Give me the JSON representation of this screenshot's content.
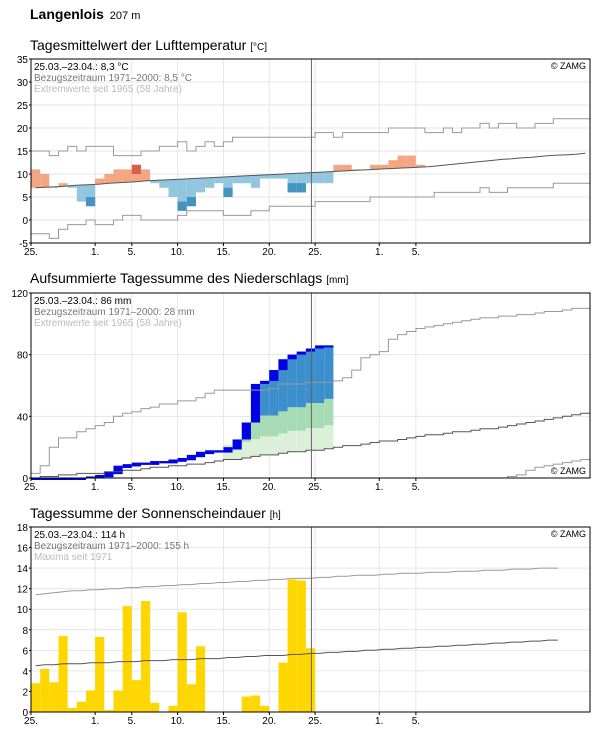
{
  "station": {
    "name": "Langenlois",
    "altitude": "207 m"
  },
  "xticks": [
    "25.",
    "1.",
    "5.",
    "10.",
    "15.",
    "20.",
    "25.",
    "1.",
    "5."
  ],
  "copyright": "© ZAMG",
  "chart_data": [
    {
      "type": "bar",
      "title": "Tagesmittelwert der Lufttemperatur",
      "unit": "[°C]",
      "ylim": [
        -5,
        35
      ],
      "yticks": [
        -5,
        0,
        5,
        10,
        15,
        20,
        25,
        30,
        35
      ],
      "info": [
        "25.03.–23.04.: 8,3 °C",
        "Bezugszeitraum 1971–2000: 8,5 °C",
        "Extremwerte seit 1965 (58 Jahre)"
      ],
      "daily_mean": [
        11,
        10,
        7,
        8,
        7,
        4,
        3,
        9,
        10,
        11,
        11,
        12,
        11,
        8,
        7,
        5,
        2,
        3,
        6,
        7,
        8,
        5,
        8,
        8,
        7,
        9,
        9,
        9,
        6,
        6,
        8,
        8,
        8,
        12,
        12,
        11,
        11,
        12,
        12,
        13,
        14,
        14,
        12
      ],
      "climate_mean": [
        7,
        7.1,
        7.2,
        7.3,
        7.5,
        7.6,
        7.7,
        7.8,
        8,
        8.1,
        8.2,
        8.3,
        8.5,
        8.6,
        8.7,
        8.8,
        8.9,
        9,
        9.1,
        9.2,
        9.3,
        9.4,
        9.5,
        9.6,
        9.7,
        9.8,
        9.9,
        10,
        10.1,
        10.2,
        10.3,
        10.4,
        10.5,
        10.6,
        10.7,
        10.8,
        10.9,
        11,
        11.1,
        11.2,
        11.3,
        11.4,
        11.5,
        11.6,
        11.8,
        12,
        12.2,
        12.4,
        12.6,
        12.8,
        13,
        13.2,
        13.3,
        13.5,
        13.6,
        13.8,
        14,
        14.1,
        14.2,
        14.3,
        14.5
      ],
      "record_max": [
        15,
        15,
        14,
        15,
        16,
        15,
        16,
        16,
        16,
        14,
        14,
        14,
        15,
        15,
        16,
        16,
        17,
        15,
        16,
        17,
        16,
        17,
        18,
        18,
        18,
        18,
        18,
        18,
        18,
        18,
        18,
        19,
        19,
        18,
        19,
        19,
        19,
        19,
        19,
        20,
        20,
        20,
        20,
        19,
        19,
        20,
        19,
        20,
        20,
        21,
        20,
        21,
        21,
        20,
        20,
        21,
        21,
        22,
        22,
        22,
        22
      ],
      "record_min": [
        -3,
        -3,
        -4,
        -2,
        -1,
        -1,
        0,
        -1,
        -1,
        0,
        1,
        1,
        0,
        0,
        0,
        0,
        1,
        2,
        2,
        2,
        2,
        1,
        1,
        1,
        2,
        2,
        3,
        3,
        3,
        3,
        3,
        4,
        4,
        4,
        4,
        4,
        4,
        5,
        5,
        5,
        5,
        5,
        5,
        5,
        6,
        6,
        6,
        6,
        6,
        7,
        6,
        6,
        7,
        7,
        7,
        7,
        7,
        8,
        8,
        8,
        8
      ],
      "colors": {
        "warm": "#f4a582",
        "warm_record": "#d6604d",
        "cold": "#92c5de",
        "cold_record": "#4393c3",
        "lines": "#999999"
      }
    },
    {
      "type": "area",
      "title": "Aufsummierte Tagessumme des Niederschlags",
      "unit": "[mm]",
      "ylim": [
        0,
        120
      ],
      "yticks": [
        0,
        40,
        80,
        120
      ],
      "info": [
        "25.03.–23.04.: 86 mm",
        "Bezugszeitraum 1971–2000: 28 mm",
        "Extremwerte seit 1965 (58 Jahre)"
      ],
      "cumulative": [
        0,
        0,
        0,
        0,
        0,
        0,
        1,
        2,
        4,
        8,
        9,
        10,
        10,
        11,
        11,
        12,
        13,
        15,
        17,
        18,
        18,
        20,
        25,
        36,
        61,
        63,
        70,
        77,
        80,
        82,
        84,
        86,
        86
      ],
      "climate_mean": [
        0,
        1,
        1,
        2,
        2,
        3,
        3,
        3,
        4,
        4,
        5,
        5,
        6,
        7,
        7,
        8,
        8,
        9,
        9,
        10,
        11,
        12,
        12,
        13,
        14,
        15,
        15,
        16,
        17,
        17,
        18,
        18,
        19,
        20,
        21,
        21,
        22,
        23,
        24,
        24,
        25,
        26,
        27,
        28,
        28,
        29,
        30,
        30,
        31,
        32,
        32,
        33,
        34,
        35,
        36,
        37,
        38,
        39,
        40,
        41,
        42
      ],
      "record_max": [
        3,
        8,
        20,
        26,
        26,
        30,
        32,
        34,
        36,
        40,
        42,
        43,
        45,
        46,
        48,
        48,
        50,
        50,
        52,
        55,
        57,
        57,
        57,
        57,
        57,
        57,
        58,
        61,
        61,
        61,
        62,
        62,
        62,
        63,
        65,
        70,
        78,
        80,
        82,
        90,
        93,
        95,
        97,
        98,
        99,
        100,
        101,
        102,
        103,
        104,
        104,
        105,
        105,
        106,
        106,
        107,
        108,
        108,
        109,
        110,
        110
      ],
      "record_min": [
        0,
        0,
        0,
        0,
        0,
        0,
        0,
        0,
        0,
        0,
        0,
        0,
        0,
        0,
        0,
        0,
        0,
        0,
        0,
        0,
        0,
        0,
        0,
        0,
        0,
        0,
        0,
        0,
        0,
        0,
        0,
        0,
        0,
        0,
        0,
        0,
        0,
        0,
        0,
        0,
        0,
        0,
        0,
        0,
        0,
        0,
        0,
        0,
        0,
        0,
        0,
        0,
        1,
        2,
        5,
        7,
        8,
        9,
        10,
        11,
        12
      ],
      "colors": {
        "observed": "#0000e6",
        "light_band": "#dcefd9",
        "mid_band": "#a6dbb4",
        "upper_band": "#3b8fcc",
        "lines": "#999999"
      }
    },
    {
      "type": "bar",
      "title": "Tagessumme der Sonnenscheindauer",
      "unit": "[h]",
      "ylim": [
        0,
        18
      ],
      "yticks": [
        0,
        2,
        4,
        6,
        8,
        10,
        12,
        14,
        16,
        18
      ],
      "info": [
        "25.03.–23.04.: 114 h",
        "Bezugszeitraum 1971–2000: 155 h",
        "Maxima seit 1971"
      ],
      "values": [
        2.8,
        4.2,
        2.9,
        7.4,
        0.4,
        1,
        2.1,
        7.3,
        0.2,
        2.1,
        10.3,
        3.1,
        10.8,
        0.9,
        0,
        0.6,
        9.7,
        2.7,
        6.4,
        0,
        0,
        0,
        0,
        1.5,
        1.6,
        0.6,
        0,
        4.8,
        12.9,
        12.8,
        6.2
      ],
      "climate_mean": [
        4.5,
        4.6,
        4.6,
        4.7,
        4.7,
        4.7,
        4.8,
        4.8,
        4.8,
        4.9,
        4.9,
        4.9,
        5,
        5,
        5,
        5.1,
        5.1,
        5.1,
        5.2,
        5.2,
        5.2,
        5.3,
        5.3,
        5.4,
        5.4,
        5.5,
        5.5,
        5.5,
        5.6,
        5.6,
        5.7,
        5.7,
        5.8,
        5.8,
        5.9,
        5.9,
        6,
        6,
        6.1,
        6.1,
        6.2,
        6.2,
        6.3,
        6.3,
        6.4,
        6.4,
        6.5,
        6.5,
        6.6,
        6.6,
        6.7,
        6.7,
        6.8,
        6.8,
        6.9,
        6.9,
        7,
        7
      ],
      "max_line": [
        11.4,
        11.5,
        11.6,
        11.7,
        11.8,
        11.8,
        11.9,
        11.9,
        12,
        12,
        12.1,
        12.1,
        12.2,
        12.2,
        12.3,
        12.3,
        12.4,
        12.4,
        12.5,
        12.5,
        12.6,
        12.6,
        12.7,
        12.7,
        12.8,
        12.8,
        12.9,
        12.9,
        13,
        13,
        13,
        13.1,
        13.1,
        13.2,
        13.2,
        13.3,
        13.3,
        13.3,
        13.4,
        13.4,
        13.5,
        13.5,
        13.5,
        13.6,
        13.6,
        13.6,
        13.7,
        13.7,
        13.7,
        13.8,
        13.8,
        13.8,
        13.9,
        13.9,
        13.9,
        14,
        14,
        14
      ],
      "colors": {
        "bars": "#ffd700",
        "lines": "#999999"
      }
    }
  ]
}
